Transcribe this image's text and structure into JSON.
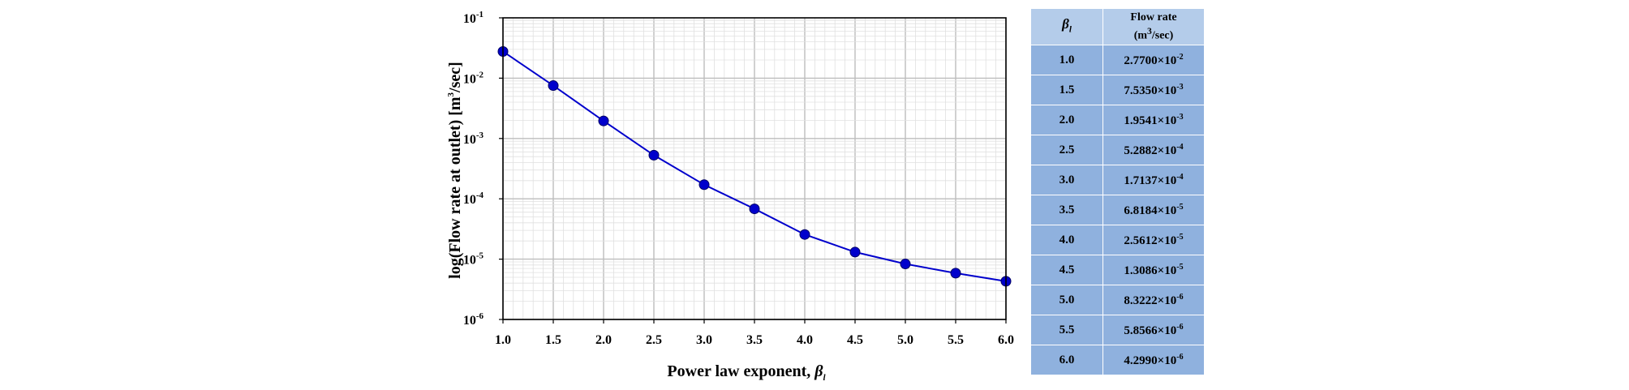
{
  "chart_data": {
    "type": "line",
    "title": "",
    "xlabel": "Power law exponent, ",
    "xlabel_symbol": "β",
    "xlabel_subscript": "l",
    "ylabel": "log(Flow rate at outlet) [m",
    "ylabel_sup": "3",
    "ylabel_tail": "/sec]",
    "xlim": [
      1.0,
      6.0
    ],
    "ylim": [
      1e-06,
      0.1
    ],
    "yscale": "log",
    "grid": true,
    "x_ticks": [
      "1.0",
      "1.5",
      "2.0",
      "2.5",
      "3.0",
      "3.5",
      "4.0",
      "4.5",
      "5.0",
      "5.5",
      "6.0"
    ],
    "x_tick_values": [
      1.0,
      1.5,
      2.0,
      2.5,
      3.0,
      3.5,
      4.0,
      4.5,
      5.0,
      5.5,
      6.0
    ],
    "y_ticks": [
      {
        "base": "10",
        "exp": "-1",
        "value": 0.1
      },
      {
        "base": "10",
        "exp": "-2",
        "value": 0.01
      },
      {
        "base": "10",
        "exp": "-3",
        "value": 0.001
      },
      {
        "base": "10",
        "exp": "-4",
        "value": 0.0001
      },
      {
        "base": "10",
        "exp": "-5",
        "value": 1e-05
      },
      {
        "base": "10",
        "exp": "-6",
        "value": 1e-06
      }
    ],
    "series": [
      {
        "name": "Flow rate",
        "color": "#0000cc",
        "x": [
          1.0,
          1.5,
          2.0,
          2.5,
          3.0,
          3.5,
          4.0,
          4.5,
          5.0,
          5.5,
          6.0
        ],
        "y": [
          0.0277,
          0.007535,
          0.0019541,
          0.00052882,
          0.00017137,
          6.8184e-05,
          2.5612e-05,
          1.3086e-05,
          8.3222e-06,
          5.8566e-06,
          4.299e-06
        ]
      }
    ]
  },
  "table": {
    "header": {
      "beta_symbol": "β",
      "beta_subscript": "l",
      "flow_line1": "Flow rate",
      "flow_line2_pre": "(m",
      "flow_line2_sup": "3",
      "flow_line2_post": "/sec)"
    },
    "rows": [
      {
        "beta": "1.0",
        "mantissa": "2.7700×10",
        "exp": "-2"
      },
      {
        "beta": "1.5",
        "mantissa": "7.5350×10",
        "exp": "-3"
      },
      {
        "beta": "2.0",
        "mantissa": "1.9541×10",
        "exp": "-3"
      },
      {
        "beta": "2.5",
        "mantissa": "5.2882×10",
        "exp": "-4"
      },
      {
        "beta": "3.0",
        "mantissa": "1.7137×10",
        "exp": "-4"
      },
      {
        "beta": "3.5",
        "mantissa": "6.8184×10",
        "exp": "-5"
      },
      {
        "beta": "4.0",
        "mantissa": "2.5612×10",
        "exp": "-5"
      },
      {
        "beta": "4.5",
        "mantissa": "1.3086×10",
        "exp": "-5"
      },
      {
        "beta": "5.0",
        "mantissa": "8.3222×10",
        "exp": "-6"
      },
      {
        "beta": "5.5",
        "mantissa": "5.8566×10",
        "exp": "-6"
      },
      {
        "beta": "6.0",
        "mantissa": "4.2990×10",
        "exp": "-6"
      }
    ]
  }
}
